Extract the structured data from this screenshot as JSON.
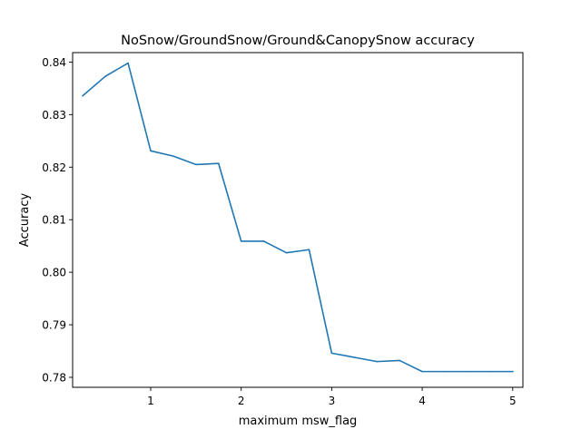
{
  "chart_data": {
    "type": "line",
    "title": "NoSnow/GroundSnow/Ground&CanopySnow accuracy",
    "xlabel": "maximum msw_flag",
    "ylabel": "Accuracy",
    "xlim": [
      0.1375,
      5.1125
    ],
    "ylim": [
      0.7781,
      0.8418
    ],
    "xticks": [
      1,
      2,
      3,
      4,
      5
    ],
    "xtick_labels": [
      "1",
      "2",
      "3",
      "4",
      "5"
    ],
    "yticks": [
      0.78,
      0.79,
      0.8,
      0.81,
      0.82,
      0.83,
      0.84
    ],
    "ytick_labels": [
      "0.78",
      "0.79",
      "0.80",
      "0.81",
      "0.82",
      "0.83",
      "0.84"
    ],
    "grid": false,
    "series": [
      {
        "x": [
          0.25,
          0.5,
          0.75,
          1.0,
          1.25,
          1.5,
          1.75,
          2.0,
          2.25,
          2.5,
          2.75,
          3.0,
          3.25,
          3.5,
          3.75,
          4.0,
          4.25,
          4.5,
          4.75,
          5.0
        ],
        "y": [
          0.8336,
          0.8373,
          0.8398,
          0.8231,
          0.8221,
          0.8205,
          0.8207,
          0.8059,
          0.8059,
          0.8037,
          0.8043,
          0.7846,
          0.7838,
          0.783,
          0.7832,
          0.7811,
          0.7811,
          0.7811,
          0.7811,
          0.7811
        ],
        "color": "#1f77b4"
      }
    ]
  }
}
